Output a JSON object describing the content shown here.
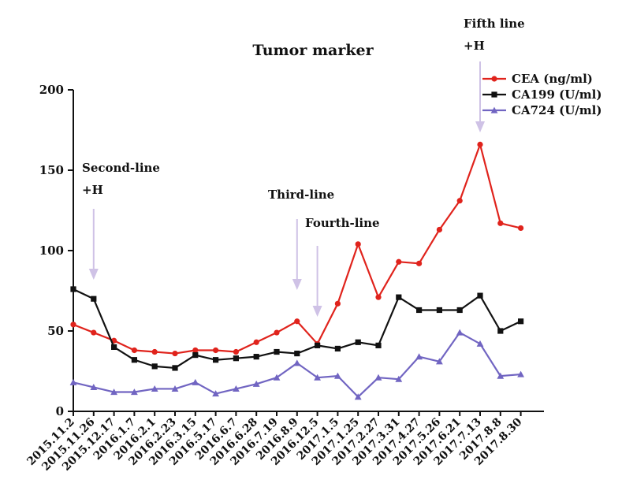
{
  "chart_data": {
    "type": "line",
    "title": "Tumor marker",
    "xlabel": "",
    "ylabel": "",
    "ylim": [
      0,
      200
    ],
    "yticks": [
      0,
      50,
      100,
      150,
      200
    ],
    "categories": [
      "2015.11.2",
      "2015.11.26",
      "2015.12.17",
      "2016.1.7",
      "2016.2.1",
      "2016.2.23",
      "2016.3.15",
      "2016.5.17",
      "2016.6.7",
      "2016.6.28",
      "2016.7.19",
      "2016.8.9",
      "2016.12.5",
      "2017.1.5",
      "2017.1.25",
      "2017.2.27",
      "2017.3.31",
      "2017.4.27",
      "2017.5.26",
      "2017.6.21",
      "2017.7.13",
      "2017.8.8",
      "2017.8.30"
    ],
    "series": [
      {
        "name": "CEA  (ng/ml)",
        "color": "#e0231c",
        "marker": "circle",
        "values": [
          54,
          49,
          44,
          38,
          37,
          36,
          38,
          38,
          37,
          43,
          49,
          56,
          42,
          67,
          104,
          71,
          93,
          92,
          113,
          131,
          166,
          117,
          114
        ]
      },
      {
        "name": "CA199  (U/ml)",
        "color": "#111111",
        "marker": "square",
        "values": [
          76,
          70,
          40,
          32,
          28,
          27,
          35,
          32,
          33,
          34,
          37,
          36,
          41,
          39,
          43,
          41,
          71,
          63,
          63,
          63,
          72,
          50,
          56
        ]
      },
      {
        "name": "CA724  (U/ml)",
        "color": "#7165c2",
        "marker": "triangle",
        "values": [
          18,
          15,
          12,
          12,
          14,
          14,
          18,
          11,
          14,
          17,
          21,
          30,
          21,
          22,
          9,
          21,
          20,
          34,
          31,
          49,
          42,
          22,
          23
        ]
      }
    ],
    "legend_position": "top-right",
    "grid": false,
    "annotations": [
      {
        "lines": [
          "Second-line",
          "+H"
        ],
        "category": "2015.11.26"
      },
      {
        "lines": [
          "Third-line"
        ],
        "category": "2016.8.9"
      },
      {
        "lines": [
          "Fourth-line"
        ],
        "category": "2016.12.5"
      },
      {
        "lines": [
          "Fifth line",
          "+H"
        ],
        "category": "2017.7.13"
      }
    ],
    "arrow_color": "#cfc2e6"
  }
}
